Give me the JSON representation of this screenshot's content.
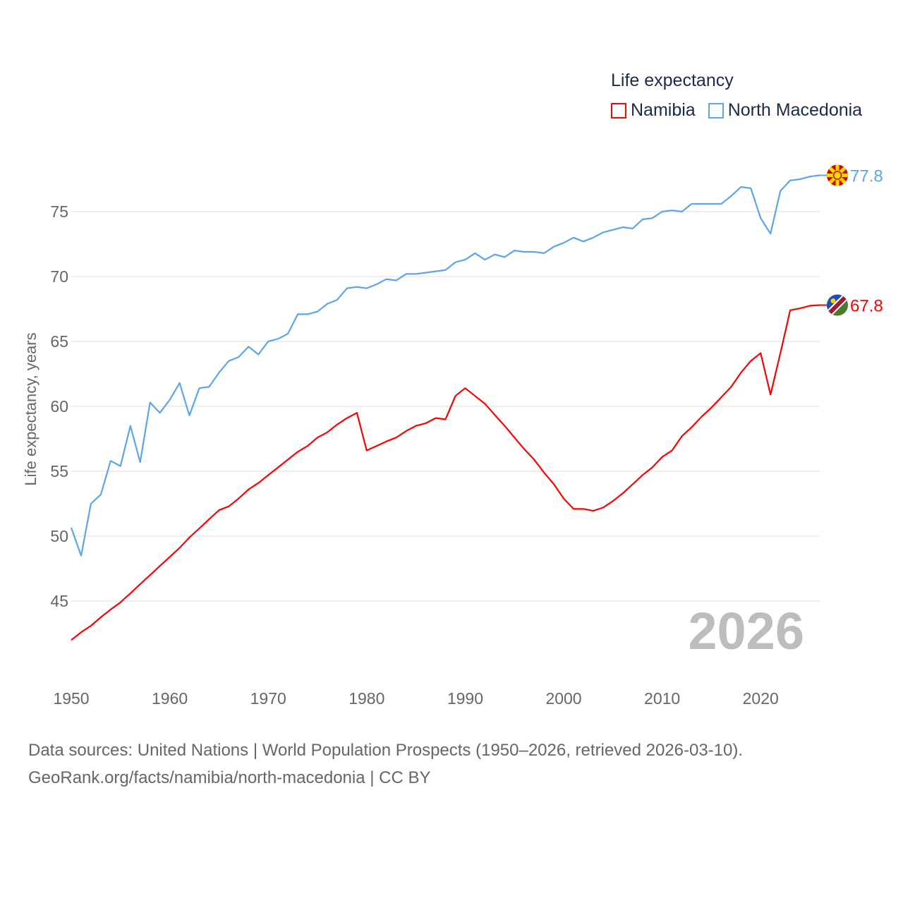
{
  "chart_data": {
    "type": "line",
    "title": "Life expectancy",
    "xlabel": "",
    "ylabel": "Life expectancy, years",
    "xlim": [
      1950,
      2026
    ],
    "ylim": [
      40,
      78
    ],
    "x_ticks": [
      1950,
      1960,
      1970,
      1980,
      1990,
      2000,
      2010,
      2020
    ],
    "y_ticks": [
      45,
      50,
      55,
      60,
      65,
      70,
      75
    ],
    "grid": true,
    "legend_placement": "top-right",
    "year_label": "2026",
    "x": [
      1950,
      1951,
      1952,
      1953,
      1954,
      1955,
      1956,
      1957,
      1958,
      1959,
      1960,
      1961,
      1962,
      1963,
      1964,
      1965,
      1966,
      1967,
      1968,
      1969,
      1970,
      1971,
      1972,
      1973,
      1974,
      1975,
      1976,
      1977,
      1978,
      1979,
      1980,
      1981,
      1982,
      1983,
      1984,
      1985,
      1986,
      1987,
      1988,
      1989,
      1990,
      1991,
      1992,
      1993,
      1994,
      1995,
      1996,
      1997,
      1998,
      1999,
      2000,
      2001,
      2002,
      2003,
      2004,
      2005,
      2006,
      2007,
      2008,
      2009,
      2010,
      2011,
      2012,
      2013,
      2014,
      2015,
      2016,
      2017,
      2018,
      2019,
      2020,
      2021,
      2022,
      2023,
      2024,
      2025,
      2026
    ],
    "series": [
      {
        "name": "Namibia",
        "color": "#ff0000",
        "end_label": "67.8",
        "flag": "namibia-flag",
        "values": [
          42.0,
          42.6,
          43.1,
          43.75,
          44.35,
          44.9,
          45.6,
          46.3,
          47.0,
          47.7,
          48.4,
          49.1,
          49.9,
          50.6,
          51.3,
          52.0,
          52.3,
          52.9,
          53.6,
          54.1,
          54.7,
          55.3,
          55.9,
          56.5,
          56.95,
          57.6,
          58.0,
          58.6,
          59.1,
          59.5,
          56.6,
          56.95,
          57.3,
          57.6,
          58.1,
          58.5,
          58.7,
          59.1,
          59.0,
          60.8,
          61.4,
          60.8,
          60.2,
          59.35,
          58.5,
          57.6,
          56.7,
          55.9,
          54.9,
          54.0,
          52.9,
          52.1,
          52.1,
          51.95,
          52.2,
          52.7,
          53.3,
          54.0,
          54.7,
          55.3,
          56.1,
          56.6,
          57.7,
          58.4,
          59.2,
          59.9,
          60.7,
          61.5,
          62.6,
          63.5,
          64.1,
          60.9,
          64.1,
          67.4,
          67.55,
          67.75,
          67.8
        ]
      },
      {
        "name": "North Macedonia",
        "color": "#5aa5eb",
        "end_label": "77.8",
        "flag": "north-macedonia-flag",
        "values": [
          50.65,
          48.5,
          52.5,
          53.2,
          55.8,
          55.4,
          58.5,
          55.7,
          60.3,
          59.5,
          60.5,
          61.8,
          59.3,
          61.4,
          61.5,
          62.6,
          63.5,
          63.8,
          64.6,
          64.0,
          65.0,
          65.2,
          65.6,
          67.1,
          67.1,
          67.3,
          67.9,
          68.2,
          69.1,
          69.2,
          69.1,
          69.4,
          69.8,
          69.7,
          70.2,
          70.2,
          70.3,
          70.4,
          70.5,
          71.1,
          71.3,
          71.8,
          71.3,
          71.7,
          71.5,
          72.0,
          71.9,
          71.9,
          71.8,
          72.3,
          72.6,
          73.0,
          72.7,
          73.0,
          73.4,
          73.6,
          73.8,
          73.7,
          74.4,
          74.5,
          75.0,
          75.1,
          75.0,
          75.6,
          75.6,
          75.6,
          75.6,
          76.2,
          76.9,
          76.8,
          74.5,
          73.3,
          76.6,
          77.4,
          77.5,
          77.7,
          77.8
        ]
      }
    ]
  },
  "footer": {
    "line1": "Data sources: United Nations | World Population Prospects (1950–2026, retrieved 2026-03-10).",
    "line2": "GeoRank.org/facts/namibia/north-macedonia | CC BY"
  }
}
